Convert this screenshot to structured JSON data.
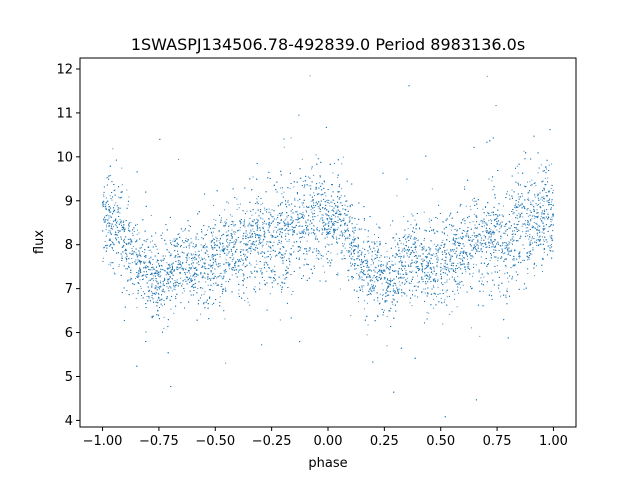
{
  "chart_data": {
    "type": "scatter",
    "title": "1SWASPJ134506.78-492839.0 Period 8983136.0s",
    "xlabel": "phase",
    "ylabel": "flux",
    "xlim": [
      -1.1,
      1.1
    ],
    "ylim": [
      3.85,
      12.25
    ],
    "x_ticks": [
      -1.0,
      -0.75,
      -0.5,
      -0.25,
      0.0,
      0.25,
      0.5,
      0.75,
      1.0
    ],
    "x_tick_labels": [
      "−1.00",
      "−0.75",
      "−0.50",
      "−0.25",
      "0.00",
      "0.25",
      "0.50",
      "0.75",
      "1.00"
    ],
    "y_ticks": [
      4,
      5,
      6,
      7,
      8,
      9,
      10,
      11,
      12
    ],
    "y_tick_labels": [
      "4",
      "5",
      "6",
      "7",
      "8",
      "9",
      "10",
      "11",
      "12"
    ],
    "grid": false,
    "legend": "none",
    "marker_color": "#1f77b4",
    "series": [
      {
        "profile_phase": [
          0.0,
          0.04,
          0.08,
          0.12,
          0.16,
          0.2,
          0.24,
          0.28,
          0.32,
          0.36,
          0.4,
          0.44,
          0.48,
          0.52,
          0.56,
          0.6,
          0.64,
          0.68,
          0.72,
          0.76,
          0.8,
          0.84,
          0.88,
          0.92,
          0.96,
          1.0
        ],
        "profile_flux": [
          8.6,
          8.6,
          8.3,
          7.8,
          7.5,
          7.4,
          7.2,
          7.2,
          7.5,
          7.7,
          7.6,
          7.5,
          7.6,
          7.7,
          7.8,
          7.9,
          8.0,
          8.1,
          8.1,
          8.1,
          8.2,
          8.3,
          8.4,
          8.5,
          8.7,
          8.6
        ],
        "profile_scatter": [
          0.5,
          0.5,
          0.5,
          0.5,
          0.45,
          0.45,
          0.45,
          0.45,
          0.45,
          0.45,
          0.45,
          0.45,
          0.45,
          0.5,
          0.5,
          0.55,
          0.55,
          0.55,
          0.55,
          0.6,
          0.6,
          0.6,
          0.6,
          0.6,
          0.55,
          0.5
        ],
        "point_count": 9000
      }
    ]
  }
}
